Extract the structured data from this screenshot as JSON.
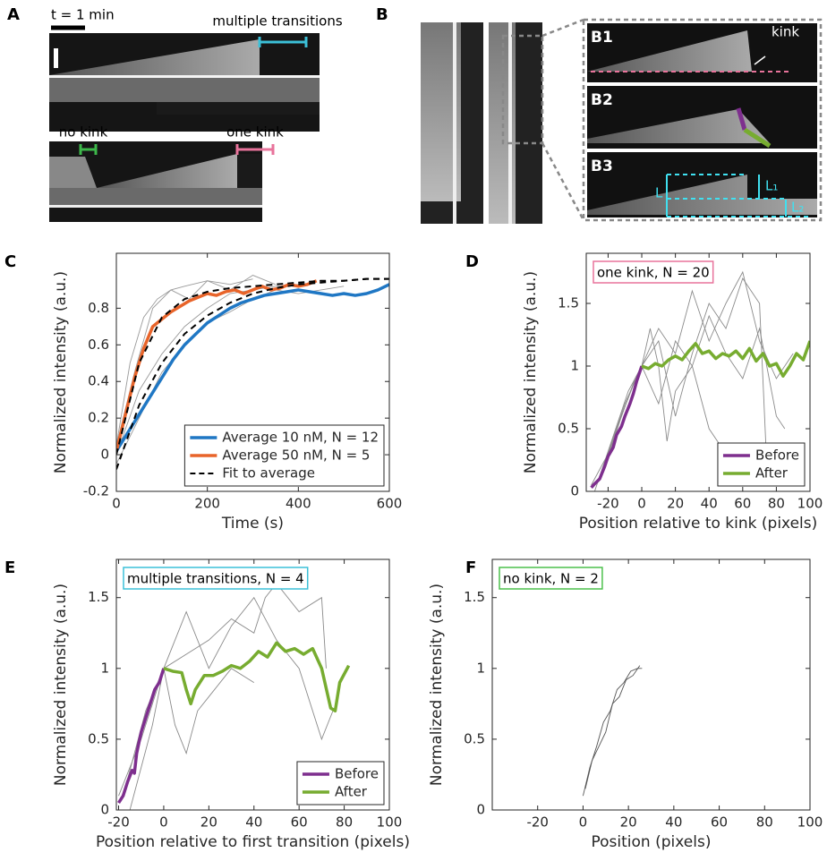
{
  "kymographs": {
    "A": {
      "label": "A",
      "scale_bar": "t = 1 min",
      "top_annotation": "multiple transitions",
      "bottom_annotations": [
        "no kink",
        "one kink"
      ]
    },
    "B": {
      "label": "B",
      "insets": [
        "B1",
        "B2",
        "B3"
      ],
      "kink": "kink",
      "L": "L",
      "L1": "L₁",
      "L2": "L₂"
    }
  },
  "chart_data": [
    {
      "type": "line",
      "panel": "C",
      "xlabel": "Time (s)",
      "ylabel": "Normalized intensity (a.u.)",
      "xlim": [
        0,
        600
      ],
      "ylim": [
        -0.2,
        1.1
      ],
      "xticks": [
        0,
        200,
        400,
        600
      ],
      "yticks": [
        -0.2,
        0,
        0.2,
        0.4,
        0.6,
        0.8
      ],
      "legend": "lower right",
      "trace_color": "#9a9a9a",
      "traces": [
        {
          "x": [
            0,
            50,
            100,
            150,
            200,
            250,
            300,
            350,
            400
          ],
          "values": [
            0.0,
            0.35,
            0.55,
            0.7,
            0.8,
            0.88,
            0.9,
            0.92,
            0.93
          ]
        },
        {
          "x": [
            0,
            30,
            60,
            90,
            120,
            150,
            200,
            250,
            300
          ],
          "values": [
            0.05,
            0.5,
            0.75,
            0.85,
            0.9,
            0.92,
            0.95,
            0.93,
            0.96
          ]
        },
        {
          "x": [
            0,
            50,
            100,
            150,
            200,
            250,
            300,
            350,
            400,
            450,
            500
          ],
          "values": [
            -0.05,
            0.2,
            0.45,
            0.6,
            0.72,
            0.78,
            0.85,
            0.9,
            0.88,
            0.9,
            0.92
          ]
        },
        {
          "x": [
            0,
            40,
            80,
            120,
            160,
            200,
            250,
            300,
            350
          ],
          "values": [
            0.05,
            0.45,
            0.8,
            0.9,
            0.85,
            0.95,
            0.9,
            0.98,
            0.93
          ]
        }
      ],
      "series": [
        {
          "name": "Average 10 nM, N = 12",
          "color": "#1f77c4",
          "x": [
            0,
            25,
            50,
            75,
            100,
            125,
            150,
            175,
            200,
            225,
            250,
            275,
            300,
            325,
            350,
            375,
            400,
            425,
            450,
            475,
            500,
            525,
            550,
            575,
            600
          ],
          "values": [
            0.02,
            0.12,
            0.22,
            0.32,
            0.42,
            0.52,
            0.6,
            0.66,
            0.72,
            0.76,
            0.8,
            0.83,
            0.85,
            0.87,
            0.88,
            0.89,
            0.9,
            0.89,
            0.88,
            0.87,
            0.88,
            0.87,
            0.88,
            0.9,
            0.93
          ]
        },
        {
          "name": "Average 50 nM, N = 5",
          "color": "#e8642a",
          "x": [
            0,
            20,
            40,
            60,
            80,
            100,
            120,
            140,
            160,
            180,
            200,
            220,
            240,
            260,
            280,
            300,
            320,
            340,
            360,
            380,
            400,
            420,
            440
          ],
          "values": [
            0.02,
            0.22,
            0.42,
            0.58,
            0.7,
            0.74,
            0.78,
            0.81,
            0.84,
            0.86,
            0.88,
            0.87,
            0.89,
            0.9,
            0.88,
            0.9,
            0.92,
            0.9,
            0.91,
            0.93,
            0.92,
            0.93,
            0.95
          ]
        },
        {
          "name": "Fit to average",
          "color": "#000000",
          "style": "dashed",
          "curves": [
            {
              "x": [
                0,
                50,
                100,
                150,
                200,
                250,
                300,
                350,
                400,
                450,
                500,
                550,
                600
              ],
              "values": [
                -0.08,
                0.27,
                0.5,
                0.66,
                0.76,
                0.83,
                0.88,
                0.91,
                0.93,
                0.94,
                0.95,
                0.96,
                0.96
              ]
            },
            {
              "x": [
                0,
                50,
                100,
                150,
                200,
                250,
                300,
                350,
                400,
                450,
                500,
                550,
                600
              ],
              "values": [
                0.0,
                0.5,
                0.75,
                0.85,
                0.89,
                0.91,
                0.92,
                0.93,
                0.94,
                0.95,
                0.95,
                0.96,
                0.96
              ]
            }
          ]
        }
      ]
    },
    {
      "type": "line",
      "panel": "D",
      "xlabel": "Position relative to kink (pixels)",
      "ylabel": "Normalized intensity (a.u.)",
      "xlim": [
        -33,
        100
      ],
      "ylim": [
        0,
        1.9
      ],
      "xticks": [
        -20,
        0,
        20,
        40,
        60,
        80,
        100
      ],
      "yticks": [
        0,
        0.5,
        1,
        1.5
      ],
      "legend": "lower right",
      "trace_color": "#8a8a8a",
      "annotation": {
        "text": "one kink, N = 20",
        "color": "#e8739b"
      },
      "traces": [
        {
          "x": [
            -25,
            -15,
            -5,
            0,
            10,
            20,
            30,
            40,
            50,
            60,
            70,
            80,
            90
          ],
          "values": [
            0.1,
            0.5,
            0.85,
            1.0,
            1.3,
            1.1,
            1.6,
            1.2,
            1.5,
            1.75,
            1.2,
            0.9,
            1.1
          ]
        },
        {
          "x": [
            -30,
            -20,
            -10,
            0,
            10,
            20,
            30,
            40,
            50,
            60,
            70,
            74
          ],
          "values": [
            0.05,
            0.3,
            0.7,
            1.0,
            1.2,
            0.6,
            1.1,
            1.5,
            1.3,
            1.7,
            1.5,
            0.3
          ]
        },
        {
          "x": [
            -28,
            -18,
            -8,
            0,
            5,
            10,
            15,
            20,
            30,
            40,
            50
          ],
          "values": [
            0.0,
            0.4,
            0.8,
            1.0,
            1.3,
            1.0,
            0.4,
            0.8,
            1.0,
            0.5,
            0.3
          ]
        },
        {
          "x": [
            -22,
            -12,
            -4,
            0,
            10,
            20,
            30,
            40,
            50,
            60,
            70,
            80,
            85
          ],
          "values": [
            0.2,
            0.6,
            0.9,
            1.0,
            0.7,
            1.2,
            1.0,
            1.4,
            1.1,
            0.9,
            1.3,
            0.6,
            0.5
          ]
        }
      ],
      "series": [
        {
          "name": "Before",
          "color": "#7e2f8e",
          "x": [
            -30,
            -28,
            -25,
            -22,
            -20,
            -17,
            -15,
            -12,
            -10,
            -7,
            -5,
            -3,
            0
          ],
          "values": [
            0.03,
            0.06,
            0.1,
            0.2,
            0.28,
            0.35,
            0.45,
            0.52,
            0.6,
            0.7,
            0.78,
            0.88,
            1.0
          ]
        },
        {
          "name": "After",
          "color": "#77ac30",
          "x": [
            0,
            4,
            8,
            12,
            16,
            20,
            24,
            28,
            32,
            36,
            40,
            44,
            48,
            52,
            56,
            60,
            64,
            68,
            72,
            76,
            80,
            84,
            88,
            92,
            96,
            100
          ],
          "values": [
            1.0,
            0.98,
            1.02,
            1.0,
            1.05,
            1.08,
            1.05,
            1.12,
            1.18,
            1.1,
            1.12,
            1.06,
            1.1,
            1.08,
            1.12,
            1.06,
            1.14,
            1.04,
            1.1,
            1.0,
            1.02,
            0.92,
            1.0,
            1.1,
            1.05,
            1.2
          ]
        }
      ]
    },
    {
      "type": "line",
      "panel": "E",
      "xlabel": "Position relative to first transition (pixels)",
      "ylabel": "Normalized intensity (a.u.)",
      "xlim": [
        -21,
        100
      ],
      "ylim": [
        0,
        1.77
      ],
      "xticks": [
        -20,
        0,
        20,
        40,
        60,
        80,
        100
      ],
      "yticks": [
        0,
        0.5,
        1,
        1.5
      ],
      "legend": "lower right",
      "trace_color": "#8a8a8a",
      "annotation": {
        "text": "multiple transitions, N = 4",
        "color": "#3cc0d8"
      },
      "traces": [
        {
          "x": [
            -20,
            -10,
            0,
            10,
            20,
            30,
            40,
            50,
            60,
            70,
            75
          ],
          "values": [
            0.1,
            0.5,
            1.0,
            1.4,
            1.0,
            1.3,
            1.5,
            1.2,
            1.0,
            0.5,
            0.7
          ]
        },
        {
          "x": [
            -15,
            -5,
            0,
            10,
            20,
            30,
            40,
            45,
            50,
            60,
            70,
            72
          ],
          "values": [
            0.0,
            0.6,
            1.0,
            1.1,
            1.2,
            1.35,
            1.25,
            1.5,
            1.6,
            1.4,
            1.5,
            1.0
          ]
        },
        {
          "x": [
            -18,
            -8,
            0,
            5,
            10,
            15,
            20,
            30,
            40
          ],
          "values": [
            0.1,
            0.7,
            1.0,
            0.6,
            0.4,
            0.7,
            0.8,
            1.0,
            0.9
          ]
        }
      ],
      "series": [
        {
          "name": "Before",
          "color": "#7e2f8e",
          "x": [
            -20,
            -18,
            -16,
            -14,
            -13,
            -12,
            -10,
            -8,
            -6,
            -4,
            -2,
            0
          ],
          "values": [
            0.05,
            0.1,
            0.2,
            0.28,
            0.26,
            0.4,
            0.55,
            0.65,
            0.75,
            0.85,
            0.9,
            1.0
          ]
        },
        {
          "name": "After",
          "color": "#77ac30",
          "x": [
            0,
            4,
            8,
            10,
            12,
            14,
            18,
            22,
            26,
            30,
            34,
            38,
            42,
            46,
            50,
            54,
            58,
            62,
            66,
            70,
            74,
            76,
            78,
            82
          ],
          "values": [
            1.0,
            0.98,
            0.97,
            0.85,
            0.75,
            0.85,
            0.95,
            0.95,
            0.98,
            1.02,
            1.0,
            1.05,
            1.12,
            1.08,
            1.18,
            1.12,
            1.14,
            1.1,
            1.14,
            1.0,
            0.72,
            0.7,
            0.9,
            1.02
          ]
        }
      ]
    },
    {
      "type": "line",
      "panel": "F",
      "xlabel": "Position (pixels)",
      "ylabel": "Normalized intensity (a.u.)",
      "xlim": [
        -40,
        100
      ],
      "ylim": [
        0,
        1.77
      ],
      "xticks": [
        -20,
        0,
        20,
        40,
        60,
        80,
        100
      ],
      "yticks": [
        0,
        0.5,
        1,
        1.5
      ],
      "trace_color": "#555555",
      "annotation": {
        "text": "no kink, N = 2",
        "color": "#4cc04c"
      },
      "traces": [
        {
          "x": [
            0,
            3,
            6,
            9,
            12,
            15,
            18,
            21,
            24,
            26
          ],
          "values": [
            0.1,
            0.3,
            0.45,
            0.62,
            0.7,
            0.85,
            0.9,
            0.98,
            1.0,
            1.0
          ]
        },
        {
          "x": [
            1,
            4,
            7,
            10,
            13,
            16,
            19,
            22,
            25
          ],
          "values": [
            0.15,
            0.35,
            0.45,
            0.55,
            0.75,
            0.8,
            0.92,
            0.95,
            1.02
          ]
        }
      ],
      "series": []
    }
  ]
}
